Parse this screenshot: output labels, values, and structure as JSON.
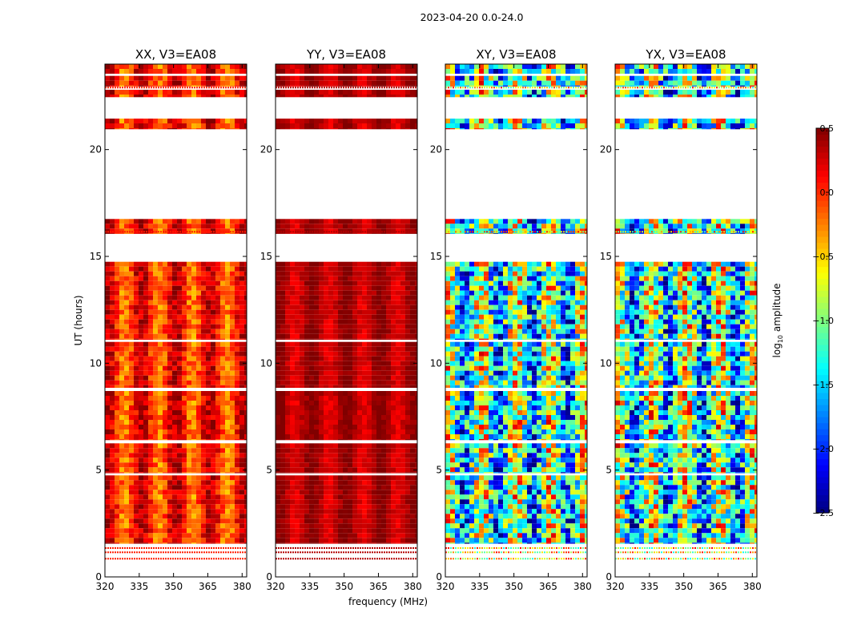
{
  "figure_title": "2023-04-20 0.0-24.0",
  "colorbar": {
    "label": "log10 amplitude",
    "label_main": "log",
    "label_sub": "10",
    "label_rest": " amplitude",
    "range": [
      -2.5,
      0.5
    ],
    "ticks": [
      {
        "value": 0.5,
        "label": "0.5"
      },
      {
        "value": 0.0,
        "label": "0.0"
      },
      {
        "value": -0.5,
        "label": "−0.5"
      },
      {
        "value": -1.0,
        "label": "−1.0"
      },
      {
        "value": -1.5,
        "label": "−1.5"
      },
      {
        "value": -2.0,
        "label": "−2.0"
      },
      {
        "value": -2.5,
        "label": "−2.5"
      }
    ],
    "colormap": "jet"
  },
  "chart_data": [
    {
      "type": "heatmap",
      "title": "XX, V3=EA08",
      "xlabel": "",
      "ylabel": "UT (hours)",
      "xlim": [
        320,
        382
      ],
      "ylim": [
        0,
        24
      ],
      "xticks": [
        320,
        335,
        350,
        365,
        380
      ],
      "yticks": [
        0,
        5,
        10,
        15,
        20
      ],
      "baseline_log_amplitude": 0.05,
      "style": "strong"
    },
    {
      "type": "heatmap",
      "title": "YY, V3=EA08",
      "xlabel": "frequency (MHz)",
      "ylabel": "",
      "xlim": [
        320,
        382
      ],
      "ylim": [
        0,
        24
      ],
      "xticks": [
        320,
        335,
        350,
        365,
        380
      ],
      "yticks": [
        0,
        5,
        10,
        15,
        20
      ],
      "baseline_log_amplitude": 0.35,
      "style": "saturated"
    },
    {
      "type": "heatmap",
      "title": "XY, V3=EA08",
      "xlabel": "",
      "ylabel": "",
      "xlim": [
        320,
        382
      ],
      "ylim": [
        0,
        24
      ],
      "xticks": [
        320,
        335,
        350,
        365,
        380
      ],
      "yticks": [
        0,
        5,
        10,
        15,
        20
      ],
      "baseline_log_amplitude": -1.2,
      "style": "noisy"
    },
    {
      "type": "heatmap",
      "title": "YX, V3=EA08",
      "xlabel": "",
      "ylabel": "",
      "xlim": [
        320,
        382
      ],
      "ylim": [
        0,
        24
      ],
      "xticks": [
        320,
        335,
        350,
        365,
        380
      ],
      "yticks": [
        0,
        5,
        10,
        15,
        20
      ],
      "baseline_log_amplitude": -1.2,
      "style": "noisy"
    }
  ],
  "data_bands_ut_hours": [
    [
      1.55,
      4.75
    ],
    [
      4.85,
      6.25
    ],
    [
      6.4,
      8.7
    ],
    [
      8.85,
      11.0
    ],
    [
      11.1,
      14.75
    ],
    [
      16.05,
      16.75
    ],
    [
      20.95,
      21.45
    ],
    [
      22.45,
      22.8
    ],
    [
      22.95,
      23.45
    ],
    [
      23.55,
      24.0
    ]
  ],
  "sparse_rows_ut_hours": [
    0.85,
    1.15,
    1.35,
    16.15,
    22.9
  ]
}
